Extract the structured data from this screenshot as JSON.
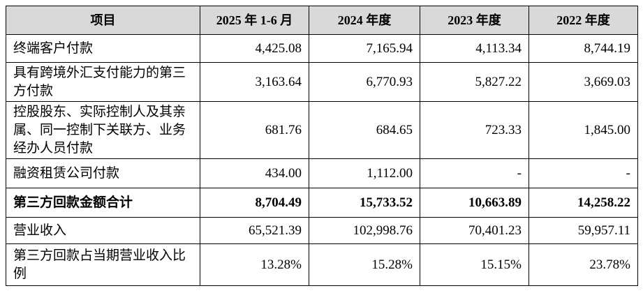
{
  "table": {
    "header": [
      "项目",
      "2025 年 1-6 月",
      "2024 年度",
      "2023 年度",
      "2022 年度"
    ],
    "rows": [
      [
        "终端客户付款",
        "4,425.08",
        "7,165.94",
        "4,113.34",
        "8,744.19"
      ],
      [
        "具有跨境外汇支付能力的第三方付款",
        "3,163.64",
        "6,770.93",
        "5,827.22",
        "3,669.03"
      ],
      [
        "控股股东、实际控制人及其亲属、同一控制下关联方、业务经办人员付款",
        "681.76",
        "684.65",
        "723.33",
        "1,845.00"
      ],
      [
        "融资租赁公司付款",
        "434.00",
        "1,112.00",
        "-",
        "-"
      ],
      [
        "第三方回款金额合计",
        "8,704.49",
        "15,733.52",
        "10,663.89",
        "14,258.22"
      ],
      [
        "营业收入",
        "65,521.39",
        "102,998.76",
        "70,401.23",
        "59,957.11"
      ],
      [
        "第三方回款占当期营业收入比例",
        "13.28%",
        "15.28%",
        "15.15%",
        "23.78%"
      ]
    ],
    "total_row": 4
  }
}
